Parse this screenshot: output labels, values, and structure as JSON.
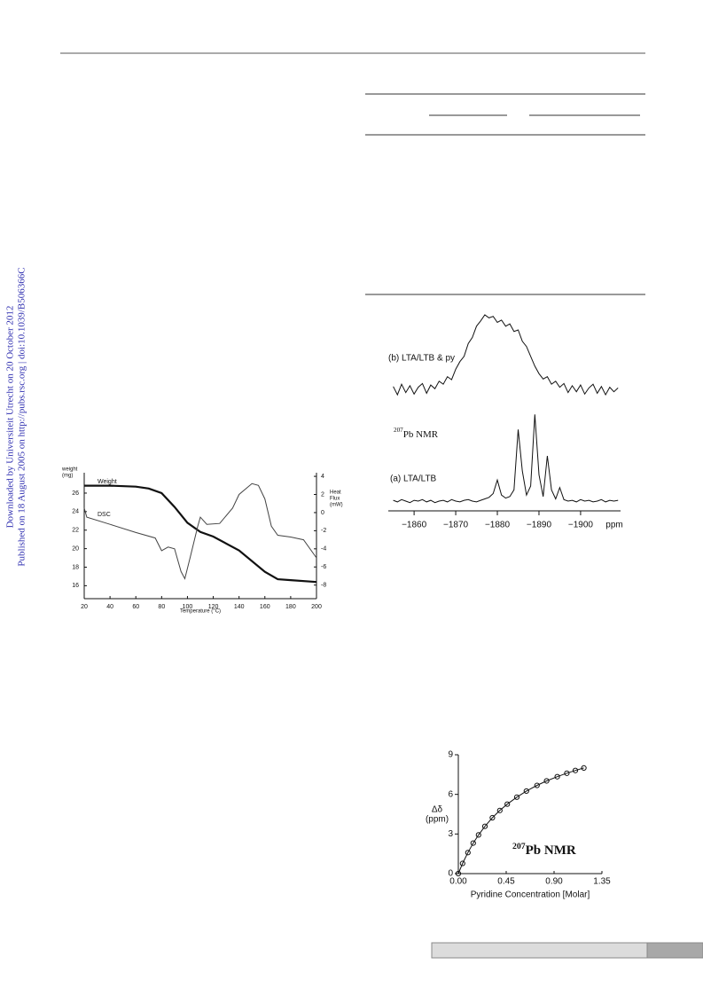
{
  "sidebar": [
    "Downloaded by Universiteit Utrecht on 20 October 2012",
    "Published on 18 August 2005 on http://pubs.rsc.org | doi:10.1039/B506366C"
  ],
  "chart_data": [
    {
      "type": "line",
      "xlabel": "Temperature (°C)",
      "ylabel": [
        "weight",
        "(mg)"
      ],
      "y2label": [
        "Heat",
        "Flux",
        "(mW)"
      ],
      "xlim": [
        20,
        200
      ],
      "xticks": [
        20,
        40,
        60,
        80,
        100,
        120,
        140,
        160,
        180,
        200
      ],
      "ylim": [
        14.6,
        28.2
      ],
      "yticks": [
        16,
        18,
        20,
        22,
        24,
        26
      ],
      "y2lim": [
        -9.5,
        4.4
      ],
      "y2ticks": [
        4,
        2,
        0,
        -2,
        -4,
        -6,
        -8
      ],
      "series": [
        {
          "name": "Weight",
          "color": "#111111",
          "x": [
            20,
            40,
            60,
            70,
            80,
            90,
            100,
            110,
            120,
            140,
            160,
            170,
            180,
            200
          ],
          "values": [
            26.8,
            26.8,
            26.7,
            26.5,
            26,
            24.5,
            22.8,
            21.8,
            21.3,
            19.8,
            17.5,
            16.7,
            16.6,
            16.4
          ]
        },
        {
          "name": "DSC",
          "color": "#444444",
          "axis": "y2",
          "x": [
            20,
            22,
            40,
            60,
            75,
            80,
            85,
            90,
            95,
            98,
            102,
            108,
            110,
            115,
            125,
            135,
            140,
            150,
            155,
            160,
            165,
            170,
            180,
            190,
            200
          ],
          "values": [
            0.5,
            -0.5,
            -1.3,
            -2.2,
            -2.8,
            -4.2,
            -3.8,
            -4.0,
            -6.5,
            -7.3,
            -5.0,
            -1.5,
            -0.5,
            -1.3,
            -1.2,
            0.5,
            2.0,
            3.2,
            3.0,
            1.5,
            -1.5,
            -2.5,
            -2.7,
            -3.0,
            -5.0
          ]
        }
      ]
    },
    {
      "type": "line",
      "xlabel": "ppm",
      "annotation": {
        "sup": "207",
        "text": "Pb NMR"
      },
      "xlim": [
        -1853.8,
        -1909.6
      ],
      "xticks": [
        {
          "value": -1860,
          "label": "−1860"
        },
        {
          "value": -1870,
          "label": "−1870"
        },
        {
          "value": -1880,
          "label": "−1880"
        },
        {
          "value": -1890,
          "label": "−1890"
        },
        {
          "value": -1900,
          "label": "−1900"
        }
      ],
      "x": [
        -1855,
        -1856,
        -1857,
        -1858,
        -1859,
        -1860,
        -1861,
        -1862,
        -1863,
        -1864,
        -1865,
        -1866,
        -1867,
        -1868,
        -1869,
        -1870,
        -1871,
        -1872,
        -1873,
        -1874,
        -1875,
        -1876,
        -1877,
        -1878,
        -1879,
        -1880,
        -1881,
        -1882,
        -1883,
        -1884,
        -1885,
        -1886,
        -1887,
        -1888,
        -1889,
        -1890,
        -1891,
        -1892,
        -1893,
        -1894,
        -1895,
        -1896,
        -1897,
        -1898,
        -1899,
        -1900,
        -1901,
        -1902,
        -1903,
        -1904,
        -1905,
        -1906,
        -1907,
        -1908,
        -1909
      ],
      "series": [
        {
          "name": "(b) LTA/LTB & py",
          "color": "#111111",
          "values": [
            5,
            -6,
            8,
            -3,
            6,
            -5,
            4,
            9,
            -4,
            7,
            2,
            12,
            8,
            18,
            14,
            28,
            38,
            45,
            62,
            70,
            85,
            92,
            100,
            96,
            98,
            90,
            93,
            85,
            88,
            78,
            80,
            65,
            58,
            45,
            32,
            22,
            15,
            18,
            8,
            12,
            4,
            9,
            -3,
            6,
            -2,
            7,
            -5,
            3,
            8,
            -4,
            5,
            -6,
            4,
            -2,
            3
          ]
        },
        {
          "name": "(a) LTA/LTB",
          "color": "#111111",
          "values": [
            1,
            -1,
            2,
            0,
            -2,
            1,
            0,
            2,
            -1,
            1,
            -2,
            0,
            1,
            -1,
            2,
            0,
            -1,
            1,
            2,
            0,
            -1,
            1,
            3,
            5,
            10,
            28,
            8,
            4,
            6,
            15,
            95,
            40,
            8,
            20,
            115,
            35,
            6,
            60,
            15,
            3,
            18,
            2,
            0,
            1,
            -1,
            2,
            0,
            1,
            -1,
            0,
            2,
            -1,
            1,
            0,
            1
          ]
        }
      ]
    },
    {
      "type": "scatter",
      "line": true,
      "xlabel": "Pyridine Concentration  [Molar]",
      "ylabel": [
        "Δδ",
        "(ppm)"
      ],
      "annotation": {
        "sup": "207",
        "text": "Pb NMR"
      },
      "xlim": [
        0,
        1.35
      ],
      "xticks": [
        {
          "value": 0,
          "label": "0.00"
        },
        {
          "value": 0.45,
          "label": "0.45"
        },
        {
          "value": 0.9,
          "label": "0.90"
        },
        {
          "value": 1.35,
          "label": "1.35"
        }
      ],
      "ylim": [
        0,
        9
      ],
      "yticks": [
        0,
        3,
        6,
        9
      ],
      "series": [
        {
          "color": "#111111",
          "x": [
            0,
            0.04,
            0.09,
            0.14,
            0.19,
            0.25,
            0.32,
            0.39,
            0.46,
            0.55,
            0.64,
            0.74,
            0.83,
            0.93,
            1.02,
            1.1,
            1.18
          ],
          "values": [
            0,
            0.77,
            1.59,
            2.31,
            2.93,
            3.58,
            4.23,
            4.78,
            5.26,
            5.79,
            6.25,
            6.68,
            7.02,
            7.34,
            7.6,
            7.81,
            8.0
          ]
        }
      ]
    }
  ]
}
